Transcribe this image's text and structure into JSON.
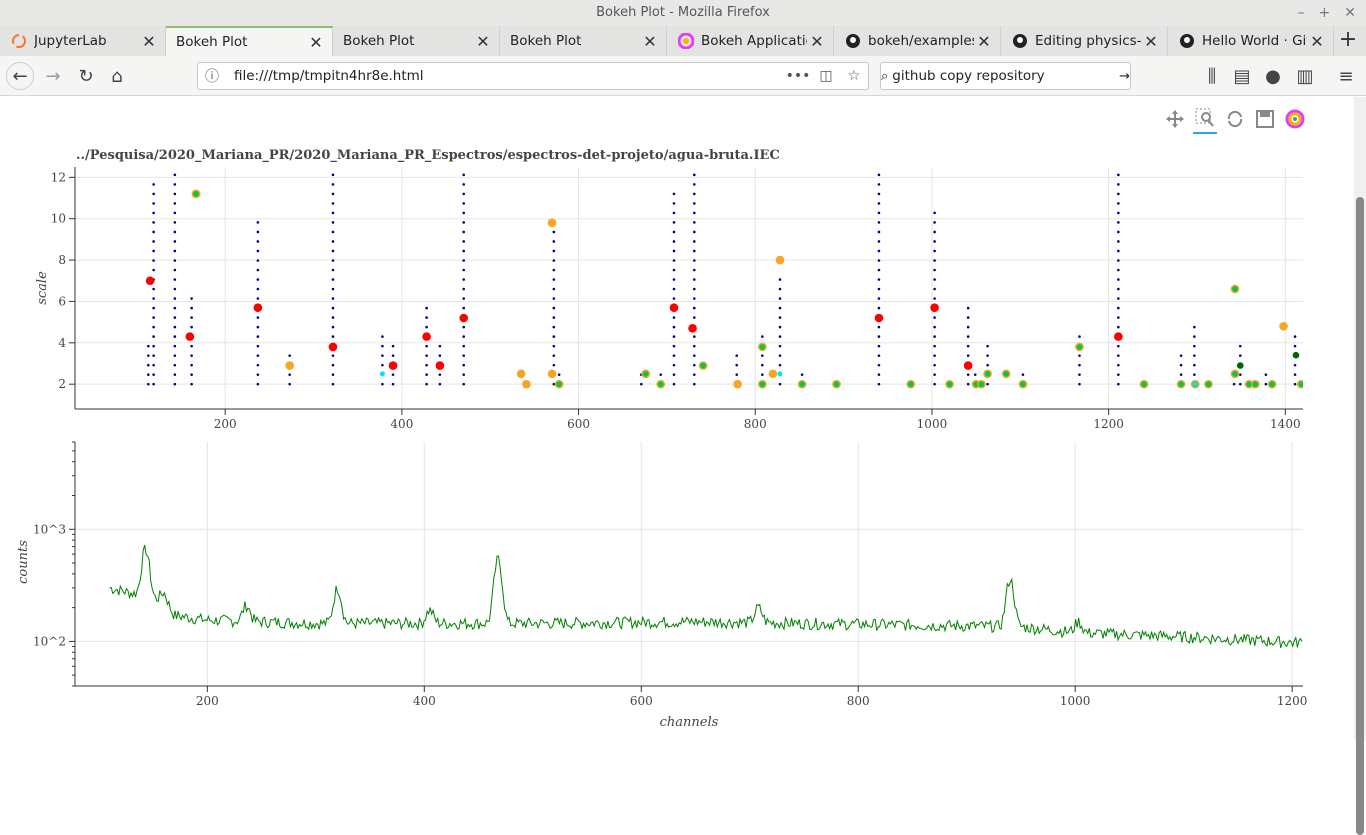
{
  "window": {
    "title": "Bokeh Plot - Mozilla Firefox"
  },
  "tabs": [
    {
      "label": "JupyterLab",
      "icon": "jupyter-icon"
    },
    {
      "label": "Bokeh Plot",
      "icon": "",
      "active": true
    },
    {
      "label": "Bokeh Plot",
      "icon": ""
    },
    {
      "label": "Bokeh Plot",
      "icon": ""
    },
    {
      "label": "Bokeh Application",
      "icon": "bokeh-icon"
    },
    {
      "label": "bokeh/examples/",
      "icon": "github-icon"
    },
    {
      "label": "Editing physics-co",
      "icon": "github-icon"
    },
    {
      "label": "Hello World · GitH",
      "icon": "github-icon"
    }
  ],
  "nav": {
    "url": "file:///tmp/tmpitn4hr8e.html",
    "search": "github copy repository"
  },
  "plot_tools": [
    "pan-icon",
    "box-zoom-icon",
    "reset-icon",
    "save-icon",
    "bokeh-logo-icon"
  ],
  "chart_data": [
    {
      "type": "scatter",
      "title": "../Pesquisa/2020_Mariana_PR/2020_Mariana_PR_Espectros/espectros-det-projeto/agua-bruta.IEC",
      "ylabel": "scale",
      "xlim": [
        30,
        1420
      ],
      "ylim": [
        0.8,
        12.5
      ],
      "x_ticks": [
        200,
        400,
        600,
        800,
        1000,
        1200,
        1400
      ],
      "y_ticks": [
        2,
        4,
        6,
        8,
        10,
        12
      ],
      "colors": {
        "dots": "#00008b",
        "red": "#ff0000",
        "orange": "#f5a623",
        "green": "#00c853",
        "cyan": "#00e5ff",
        "darkgreen": "#006400"
      },
      "dot_columns": [
        {
          "x": 113,
          "top": 4.1
        },
        {
          "x": 119,
          "top": 11.8
        },
        {
          "x": 143,
          "top": 12.5
        },
        {
          "x": 162,
          "top": 6.2
        },
        {
          "x": 237,
          "top": 9.9
        },
        {
          "x": 273,
          "top": 3.4
        },
        {
          "x": 322,
          "top": 12.5
        },
        {
          "x": 378,
          "top": 4.3
        },
        {
          "x": 390,
          "top": 3.9
        },
        {
          "x": 428,
          "top": 5.7
        },
        {
          "x": 443,
          "top": 3.9
        },
        {
          "x": 470,
          "top": 12.5
        },
        {
          "x": 572,
          "top": 10.0
        },
        {
          "x": 578,
          "top": 2.9
        },
        {
          "x": 671,
          "top": 2.9
        },
        {
          "x": 693,
          "top": 2.5
        },
        {
          "x": 708,
          "top": 11.2
        },
        {
          "x": 731,
          "top": 12.5
        },
        {
          "x": 779,
          "top": 3.4
        },
        {
          "x": 808,
          "top": 4.3
        },
        {
          "x": 828,
          "top": 7.1
        },
        {
          "x": 853,
          "top": 2.5
        },
        {
          "x": 940,
          "top": 12.5
        },
        {
          "x": 1003,
          "top": 10.3
        },
        {
          "x": 1041,
          "top": 5.7
        },
        {
          "x": 1049,
          "top": 2.5
        },
        {
          "x": 1063,
          "top": 3.9
        },
        {
          "x": 1103,
          "top": 2.9
        },
        {
          "x": 1167,
          "top": 4.3
        },
        {
          "x": 1211,
          "top": 12.5
        },
        {
          "x": 1282,
          "top": 3.4
        },
        {
          "x": 1297,
          "top": 5.2
        },
        {
          "x": 1342,
          "top": 2.9
        },
        {
          "x": 1349,
          "top": 3.9
        },
        {
          "x": 1378,
          "top": 2.5
        },
        {
          "x": 1411,
          "top": 4.3
        }
      ],
      "red_points": [
        [
          115,
          7.0
        ],
        [
          160,
          4.3
        ],
        [
          237,
          5.7
        ],
        [
          322,
          3.8
        ],
        [
          390,
          2.9
        ],
        [
          428,
          4.3
        ],
        [
          443,
          2.9
        ],
        [
          470,
          5.2
        ],
        [
          708,
          5.7
        ],
        [
          729,
          4.7
        ],
        [
          940,
          5.2
        ],
        [
          1003,
          5.7
        ],
        [
          1041,
          2.9
        ],
        [
          1211,
          4.3
        ]
      ],
      "orange_points": [
        [
          167,
          11.2
        ],
        [
          273,
          2.9
        ],
        [
          535,
          2.5
        ],
        [
          541,
          2.0
        ],
        [
          570,
          9.8
        ],
        [
          570,
          2.5
        ],
        [
          676,
          2.5
        ],
        [
          780,
          2.0
        ],
        [
          820,
          2.5
        ],
        [
          828,
          8.0
        ],
        [
          1398,
          4.8
        ]
      ],
      "green_points": [
        [
          167,
          11.2
        ],
        [
          578,
          2.0
        ],
        [
          676,
          2.5
        ],
        [
          693,
          2.0
        ],
        [
          741,
          2.9
        ],
        [
          808,
          3.8
        ],
        [
          808,
          2.0
        ],
        [
          853,
          2.0
        ],
        [
          892,
          2.0
        ],
        [
          976,
          2.0
        ],
        [
          1020,
          2.0
        ],
        [
          1050,
          2.0
        ],
        [
          1056,
          2.0
        ],
        [
          1063,
          2.5
        ],
        [
          1084,
          2.5
        ],
        [
          1103,
          2.0
        ],
        [
          1167,
          3.8
        ],
        [
          1240,
          2.0
        ],
        [
          1282,
          2.0
        ],
        [
          1298,
          2.0
        ],
        [
          1313,
          2.0
        ],
        [
          1343,
          6.6
        ],
        [
          1343,
          2.5
        ],
        [
          1359,
          2.0
        ],
        [
          1366,
          2.0
        ],
        [
          1385,
          2.0
        ],
        [
          1418,
          2.0
        ]
      ],
      "cyan_points": [
        [
          378,
          2.5
        ],
        [
          828,
          2.5
        ],
        [
          1298,
          2.0
        ]
      ],
      "darkgreen_points": [
        [
          1349,
          2.9
        ],
        [
          1412,
          3.4
        ]
      ]
    },
    {
      "type": "line",
      "xlabel": "channels",
      "ylabel": "counts",
      "y_scale": "log",
      "xlim": [
        78,
        1210
      ],
      "ylim": [
        40,
        6000
      ],
      "x_ticks": [
        200,
        400,
        600,
        800,
        1000,
        1200
      ],
      "y_tick_labels": [
        "10^2",
        "10^3"
      ],
      "line_color": "#008000",
      "base_profile": [
        [
          110,
          300
        ],
        [
          130,
          270
        ],
        [
          155,
          230
        ],
        [
          170,
          170
        ],
        [
          200,
          155
        ],
        [
          300,
          145
        ],
        [
          500,
          145
        ],
        [
          650,
          150
        ],
        [
          750,
          145
        ],
        [
          850,
          140
        ],
        [
          950,
          135
        ],
        [
          1000,
          120
        ],
        [
          1100,
          110
        ],
        [
          1200,
          98
        ]
      ],
      "peaks": [
        {
          "x": 143,
          "h": 660
        },
        {
          "x": 160,
          "h": 270
        },
        {
          "x": 236,
          "h": 210
        },
        {
          "x": 320,
          "h": 300
        },
        {
          "x": 405,
          "h": 190
        },
        {
          "x": 468,
          "h": 540
        },
        {
          "x": 708,
          "h": 200
        },
        {
          "x": 940,
          "h": 360
        },
        {
          "x": 1003,
          "h": 150
        }
      ]
    }
  ]
}
